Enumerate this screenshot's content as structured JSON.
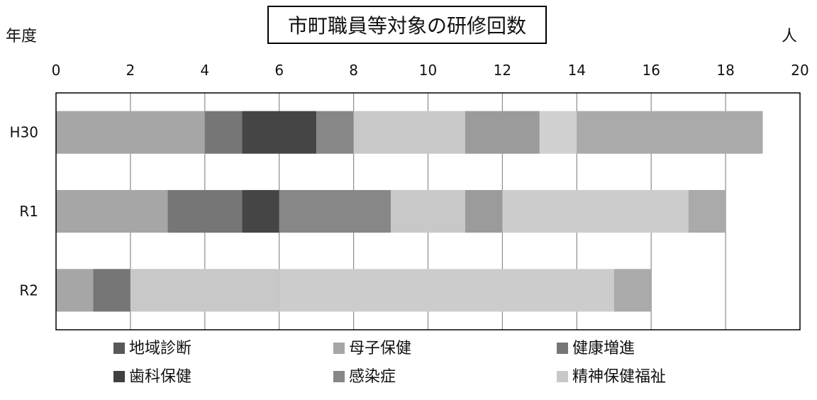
{
  "chart_data": {
    "type": "bar",
    "orientation": "horizontal",
    "stacked": true,
    "title": "市町職員等対象の研修回数",
    "ylabel": "年度",
    "xlabel": "人",
    "xlim": [
      0,
      20
    ],
    "xticks": [
      "0",
      "2",
      "4",
      "6",
      "8",
      "10",
      "12",
      "14",
      "16",
      "18",
      "20"
    ],
    "categories": [
      "H30",
      "R1",
      "R2"
    ],
    "grid": true,
    "legend_position": "bottom",
    "legend": [
      "地域診断",
      "母子保健",
      "健康増進",
      "歯科保健",
      "感染症",
      "精神保健福祉"
    ],
    "legend_colors": [
      "#595959",
      "#a6a6a6",
      "#767676",
      "#404040",
      "#878787",
      "#c8c8c8"
    ],
    "segments": [
      [
        {
          "value": 4,
          "color": "#a6a6a6"
        },
        {
          "value": 1,
          "color": "#767676"
        },
        {
          "value": 2,
          "color": "#454545"
        },
        {
          "value": 1,
          "color": "#878787"
        },
        {
          "value": 3,
          "color": "#c8c8c8"
        },
        {
          "value": 2,
          "color": "#9b9b9b"
        },
        {
          "value": 1,
          "color": "#d0d0d0"
        },
        {
          "value": 5,
          "color": "#aaaaaa"
        }
      ],
      [
        {
          "value": 3,
          "color": "#a6a6a6"
        },
        {
          "value": 2,
          "color": "#767676"
        },
        {
          "value": 1,
          "color": "#454545"
        },
        {
          "value": 3,
          "color": "#878787"
        },
        {
          "value": 2,
          "color": "#c8c8c8"
        },
        {
          "value": 1,
          "color": "#9b9b9b"
        },
        {
          "value": 5,
          "color": "#cccccc"
        },
        {
          "value": 1,
          "color": "#aaaaaa"
        }
      ],
      [
        {
          "value": 1,
          "color": "#a6a6a6"
        },
        {
          "value": 1,
          "color": "#767676"
        },
        {
          "value": 4,
          "color": "#c8c8c8"
        },
        {
          "value": 9,
          "color": "#cccccc"
        },
        {
          "value": 1,
          "color": "#aaaaaa"
        }
      ]
    ],
    "totals": [
      19,
      18,
      16
    ]
  }
}
